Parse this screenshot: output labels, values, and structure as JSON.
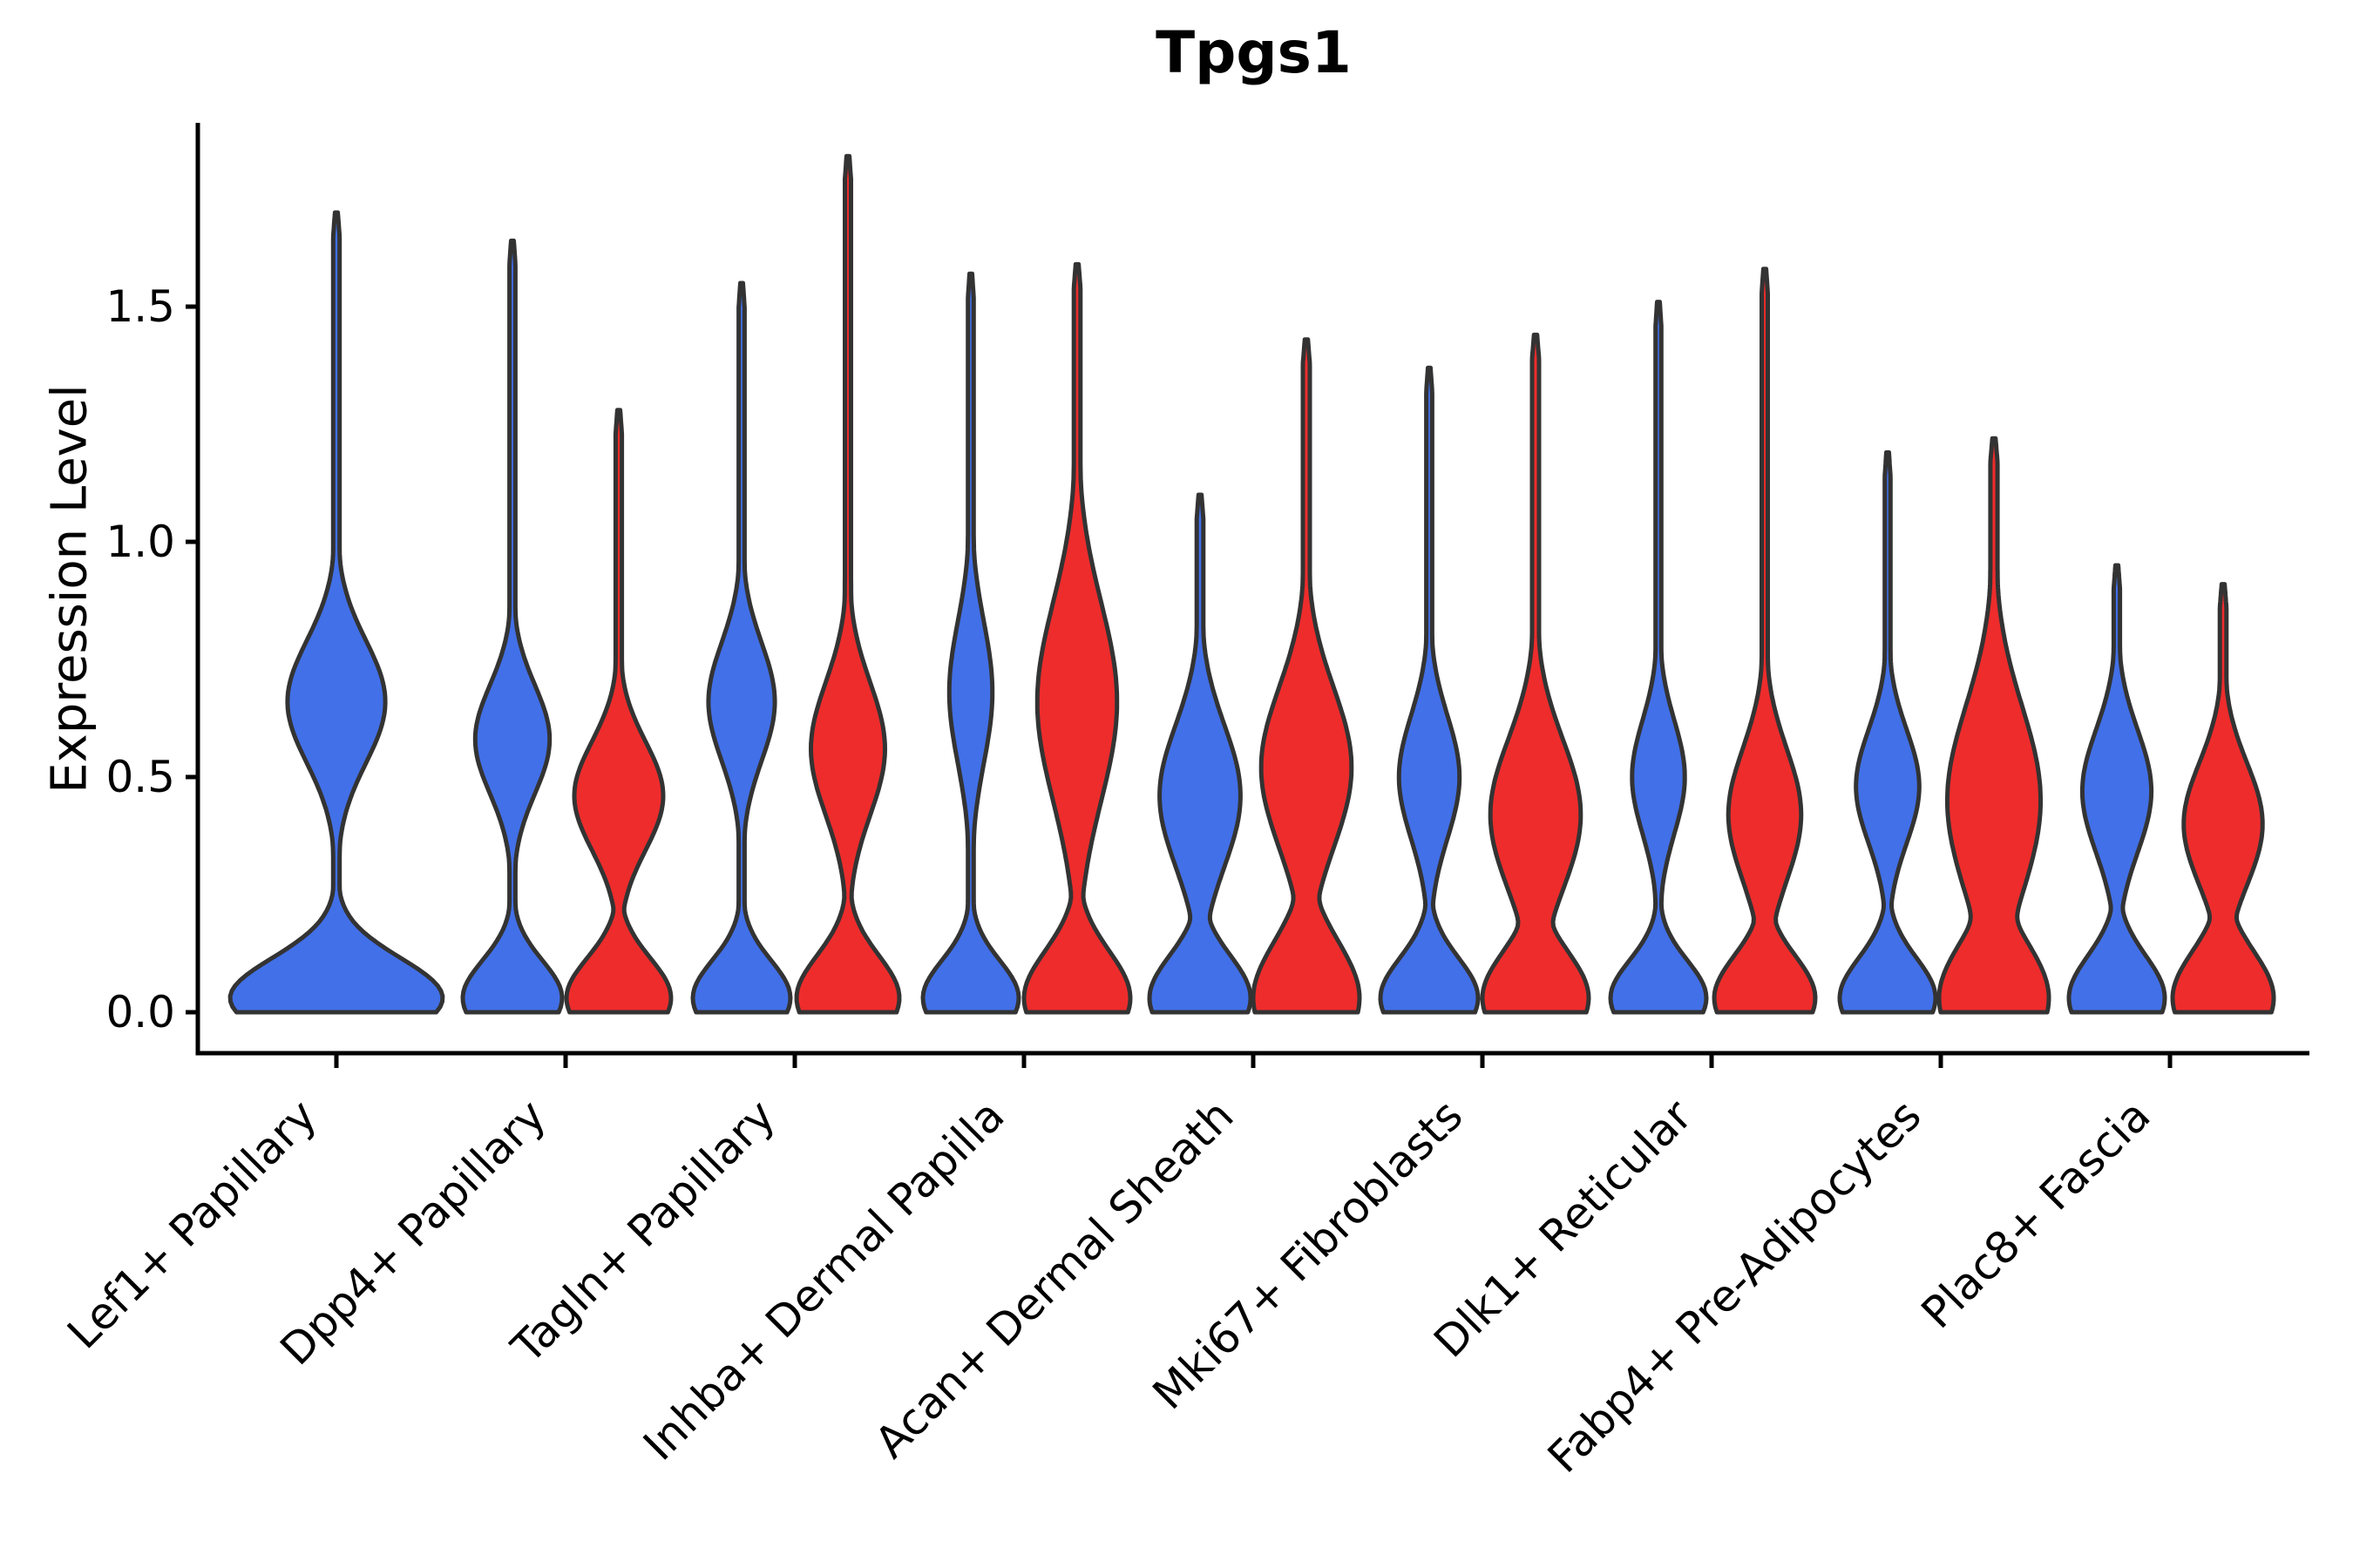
{
  "figure": {
    "title": "Tpgs1",
    "y_axis_label": "Expression Level"
  },
  "chart_data": {
    "type": "violin",
    "title": "Tpgs1",
    "ylabel": "Expression Level",
    "xlabel": "",
    "ylim": [
      0,
      1.92
    ],
    "yticks": [
      0.0,
      0.5,
      1.0,
      1.5
    ],
    "ytick_labels": [
      "0.0",
      "0.5",
      "1.0",
      "1.5"
    ],
    "grid": false,
    "legend": "none",
    "categories": [
      "Lef1+ Papillary",
      "Dpp4+ Papillary",
      "Tagln+ Papillary",
      "Inhba+ Dermal Papilla",
      "Acan+ Dermal Sheath",
      "Mki67+ Fibroblasts",
      "Dlk1+ Reticular",
      "Fabp4+ Pre-Adipocytes",
      "Plac8+ Fascia"
    ],
    "palette": {
      "blue": "#4270E8",
      "red": "#EE2C2C",
      "outline": "#333333",
      "axis": "#000000",
      "text": "#000000",
      "background": "#ffffff"
    },
    "series": [
      {
        "name": "blue",
        "color": "#4270E8",
        "max_expression": [
          1.7,
          1.64,
          1.55,
          1.57,
          1.1,
          1.37,
          1.51,
          1.19,
          0.95
        ]
      },
      {
        "name": "red",
        "color": "#EE2C2C",
        "max_expression": [
          null,
          1.28,
          1.82,
          1.59,
          1.43,
          1.44,
          1.58,
          1.22,
          0.91
        ]
      }
    ],
    "violins": [
      {
        "category": 0,
        "side": "single",
        "top": 1.7,
        "bulge_center": 0.66,
        "bulge_sigma": 0.13,
        "bulge_amp": 0.46,
        "base_sigma": 0.085,
        "spike": 0.03,
        "halfwidth": 122
      },
      {
        "category": 1,
        "side": "blue",
        "top": 1.64,
        "bulge_center": 0.58,
        "bulge_sigma": 0.115,
        "bulge_amp": 0.75,
        "base_sigma": 0.08,
        "spike": 0.06,
        "halfwidth": 57
      },
      {
        "category": 1,
        "side": "red",
        "top": 1.28,
        "bulge_center": 0.46,
        "bulge_sigma": 0.115,
        "bulge_amp": 0.85,
        "base_sigma": 0.085,
        "spike": 0.06,
        "halfwidth": 60
      },
      {
        "category": 2,
        "side": "blue",
        "top": 1.55,
        "bulge_center": 0.66,
        "bulge_sigma": 0.125,
        "bulge_amp": 0.68,
        "base_sigma": 0.08,
        "spike": 0.06,
        "halfwidth": 56
      },
      {
        "category": 2,
        "side": "red",
        "top": 1.82,
        "bulge_center": 0.56,
        "bulge_sigma": 0.14,
        "bulge_amp": 0.72,
        "base_sigma": 0.09,
        "spike": 0.06,
        "halfwidth": 59
      },
      {
        "category": 3,
        "side": "blue",
        "top": 1.57,
        "bulge_center": 0.68,
        "bulge_sigma": 0.15,
        "bulge_amp": 0.45,
        "base_sigma": 0.08,
        "spike": 0.06,
        "halfwidth": 55
      },
      {
        "category": 3,
        "side": "red",
        "top": 1.59,
        "bulge_center": 0.66,
        "bulge_sigma": 0.21,
        "bulge_amp": 0.75,
        "base_sigma": 0.1,
        "spike": 0.062,
        "halfwidth": 61
      },
      {
        "category": 4,
        "side": "blue",
        "top": 1.1,
        "bulge_center": 0.46,
        "bulge_sigma": 0.15,
        "bulge_amp": 0.8,
        "base_sigma": 0.09,
        "spike": 0.065,
        "halfwidth": 58
      },
      {
        "category": 4,
        "side": "red",
        "top": 1.43,
        "bulge_center": 0.52,
        "bulge_sigma": 0.17,
        "bulge_amp": 0.85,
        "base_sigma": 0.12,
        "spike": 0.065,
        "halfwidth": 61
      },
      {
        "category": 5,
        "side": "blue",
        "top": 1.37,
        "bulge_center": 0.5,
        "bulge_sigma": 0.13,
        "bulge_amp": 0.62,
        "base_sigma": 0.085,
        "spike": 0.06,
        "halfwidth": 56
      },
      {
        "category": 5,
        "side": "red",
        "top": 1.44,
        "bulge_center": 0.42,
        "bulge_sigma": 0.16,
        "bulge_amp": 0.85,
        "base_sigma": 0.1,
        "spike": 0.065,
        "halfwidth": 61
      },
      {
        "category": 6,
        "side": "blue",
        "top": 1.51,
        "bulge_center": 0.5,
        "bulge_sigma": 0.12,
        "bulge_amp": 0.55,
        "base_sigma": 0.08,
        "spike": 0.06,
        "halfwidth": 55
      },
      {
        "category": 6,
        "side": "red",
        "top": 1.58,
        "bulge_center": 0.42,
        "bulge_sigma": 0.14,
        "bulge_amp": 0.72,
        "base_sigma": 0.09,
        "spike": 0.06,
        "halfwidth": 58
      },
      {
        "category": 7,
        "side": "blue",
        "top": 1.19,
        "bulge_center": 0.48,
        "bulge_sigma": 0.12,
        "bulge_amp": 0.66,
        "base_sigma": 0.085,
        "spike": 0.06,
        "halfwidth": 55
      },
      {
        "category": 7,
        "side": "red",
        "top": 1.22,
        "bulge_center": 0.45,
        "bulge_sigma": 0.2,
        "bulge_amp": 0.85,
        "base_sigma": 0.12,
        "spike": 0.065,
        "halfwidth": 63
      },
      {
        "category": 8,
        "side": "blue",
        "top": 0.95,
        "bulge_center": 0.47,
        "bulge_sigma": 0.13,
        "bulge_amp": 0.72,
        "base_sigma": 0.09,
        "spike": 0.065,
        "halfwidth": 55
      },
      {
        "category": 8,
        "side": "red",
        "top": 0.91,
        "bulge_center": 0.4,
        "bulge_sigma": 0.13,
        "bulge_amp": 0.78,
        "base_sigma": 0.1,
        "spike": 0.065,
        "halfwidth": 58
      }
    ]
  }
}
